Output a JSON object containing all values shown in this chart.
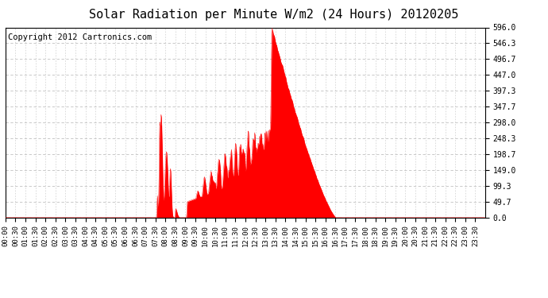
{
  "title": "Solar Radiation per Minute W/m2 (24 Hours) 20120205",
  "copyright_text": "Copyright 2012 Cartronics.com",
  "fill_color": "#FF0000",
  "line_color": "#FF0000",
  "background_color": "#FFFFFF",
  "border_color": "#000000",
  "grid_color": "#C0C0C0",
  "dashed_line_color": "#FF0000",
  "ylim": [
    0.0,
    596.0
  ],
  "ytick_values": [
    0.0,
    49.7,
    99.3,
    149.0,
    198.7,
    248.3,
    298.0,
    347.7,
    397.3,
    447.0,
    496.7,
    546.3,
    596.0
  ],
  "title_fontsize": 11,
  "tick_fontsize": 7,
  "copyright_fontsize": 7.5
}
